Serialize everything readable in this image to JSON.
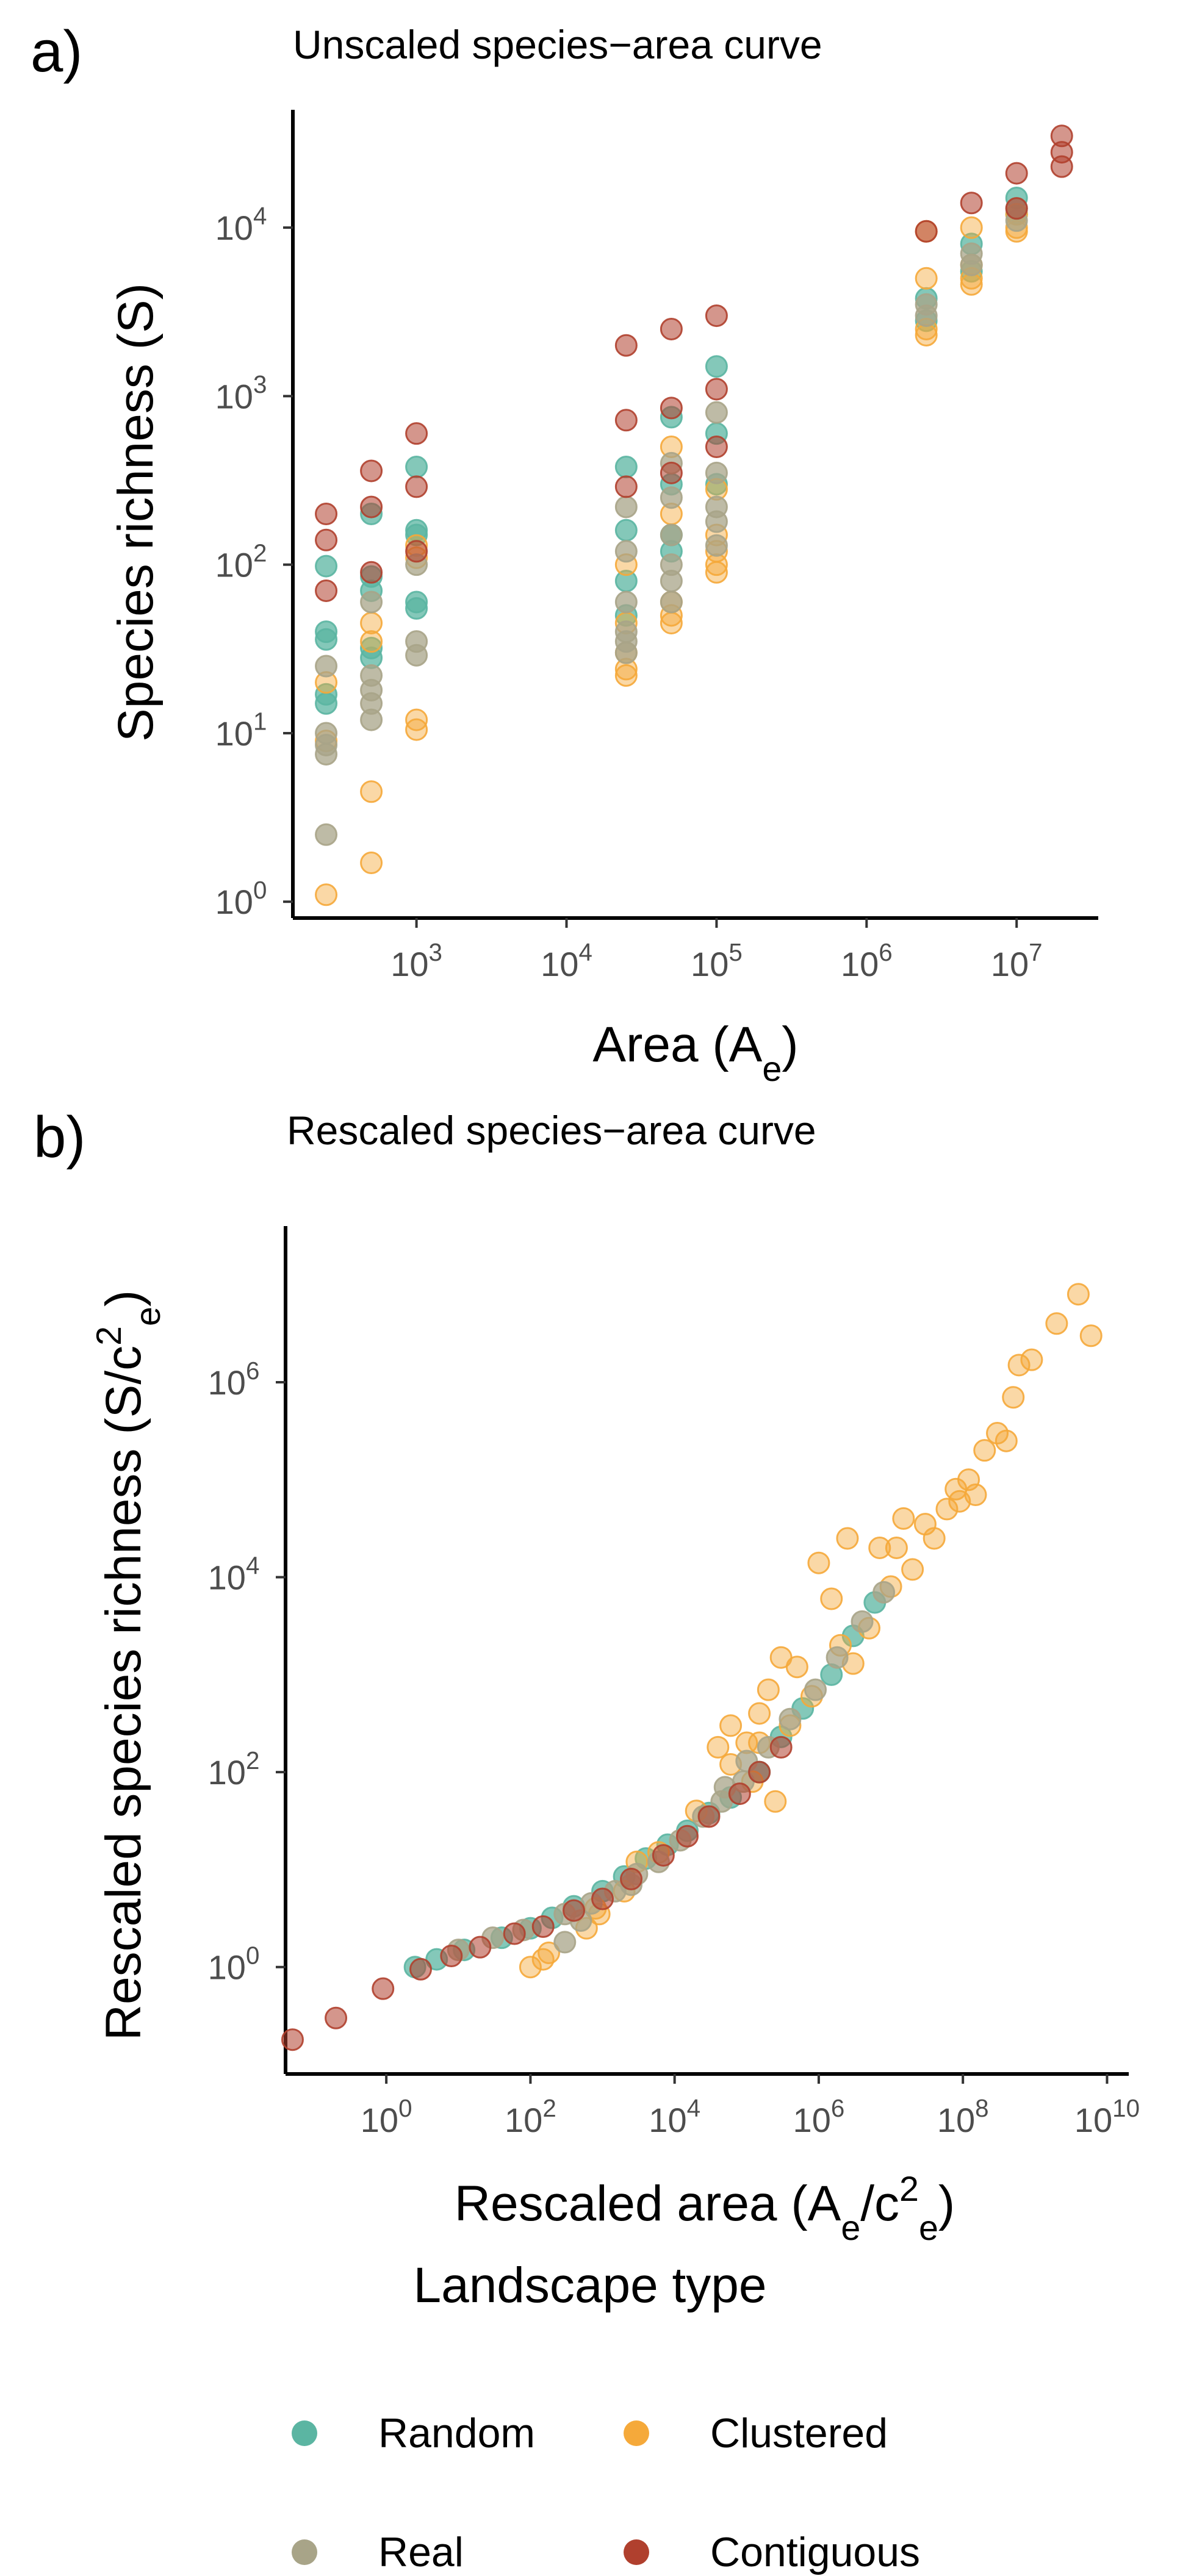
{
  "panel_a": {
    "letter": "a)"
  },
  "panel_b": {
    "letter": "b)"
  },
  "legend": {
    "title": "Landscape type",
    "items": [
      {
        "label": "Random",
        "color": "#5bb5a2"
      },
      {
        "label": "Clustered",
        "color": "#f5a93a"
      },
      {
        "label": "Real",
        "color": "#a8a488"
      },
      {
        "label": "Contiguous",
        "color": "#b0402e"
      }
    ]
  },
  "chart_data": [
    {
      "type": "scatter",
      "title": "Unscaled species−area curve",
      "xlabel": "Area (A_e)",
      "ylabel": "Species richness (S)",
      "x_scale": "log10",
      "y_scale": "log10",
      "xlim": [
        150,
        35000000
      ],
      "ylim": [
        0.8,
        50000
      ],
      "x_ticks": [
        1000,
        10000,
        100000,
        1000000,
        10000000
      ],
      "y_ticks": [
        1,
        10,
        100,
        1000,
        10000
      ],
      "grid": false,
      "legend_placement": "bottom",
      "series": [
        {
          "name": "Random",
          "points": [
            [
              250,
              98
            ],
            [
              250,
              40
            ],
            [
              250,
              36
            ],
            [
              250,
              17
            ],
            [
              250,
              15
            ],
            [
              500,
              200
            ],
            [
              500,
              85
            ],
            [
              500,
              70
            ],
            [
              500,
              32
            ],
            [
              500,
              28
            ],
            [
              1000,
              380
            ],
            [
              1000,
              160
            ],
            [
              1000,
              150
            ],
            [
              1000,
              60
            ],
            [
              1000,
              55
            ],
            [
              25000,
              380
            ],
            [
              25000,
              160
            ],
            [
              25000,
              80
            ],
            [
              25000,
              50
            ],
            [
              50000,
              750
            ],
            [
              50000,
              300
            ],
            [
              50000,
              150
            ],
            [
              50000,
              120
            ],
            [
              100000,
              1500
            ],
            [
              100000,
              600
            ],
            [
              100000,
              300
            ],
            [
              2500000,
              3800
            ],
            [
              2500000,
              2800
            ],
            [
              5000000,
              8000
            ],
            [
              5000000,
              5500
            ],
            [
              10000000,
              15000
            ],
            [
              10000000,
              12000
            ]
          ]
        },
        {
          "name": "Clustered",
          "points": [
            [
              250,
              1.1
            ],
            [
              250,
              9
            ],
            [
              250,
              20
            ],
            [
              500,
              1.7
            ],
            [
              500,
              4.5
            ],
            [
              500,
              35
            ],
            [
              500,
              45
            ],
            [
              1000,
              10.5
            ],
            [
              1000,
              12
            ],
            [
              1000,
              110
            ],
            [
              1000,
              130
            ],
            [
              25000,
              22
            ],
            [
              25000,
              24
            ],
            [
              25000,
              30
            ],
            [
              25000,
              45
            ],
            [
              25000,
              100
            ],
            [
              50000,
              45
            ],
            [
              50000,
              50
            ],
            [
              50000,
              60
            ],
            [
              50000,
              200
            ],
            [
              50000,
              500
            ],
            [
              100000,
              90
            ],
            [
              100000,
              100
            ],
            [
              100000,
              120
            ],
            [
              100000,
              150
            ],
            [
              100000,
              280
            ],
            [
              2500000,
              2300
            ],
            [
              2500000,
              2500
            ],
            [
              2500000,
              5000
            ],
            [
              2500000,
              9500
            ],
            [
              5000000,
              4600
            ],
            [
              5000000,
              5000
            ],
            [
              5000000,
              6000
            ],
            [
              5000000,
              10000
            ],
            [
              10000000,
              9500
            ],
            [
              10000000,
              10000
            ],
            [
              10000000,
              12000
            ]
          ]
        },
        {
          "name": "Real",
          "points": [
            [
              250,
              2.5
            ],
            [
              250,
              7.5
            ],
            [
              250,
              8.5
            ],
            [
              250,
              10
            ],
            [
              250,
              25
            ],
            [
              500,
              12
            ],
            [
              500,
              15
            ],
            [
              500,
              18
            ],
            [
              500,
              22
            ],
            [
              500,
              60
            ],
            [
              1000,
              29
            ],
            [
              1000,
              35
            ],
            [
              1000,
              100
            ],
            [
              25000,
              30
            ],
            [
              25000,
              35
            ],
            [
              25000,
              40
            ],
            [
              25000,
              60
            ],
            [
              25000,
              120
            ],
            [
              25000,
              220
            ],
            [
              50000,
              60
            ],
            [
              50000,
              80
            ],
            [
              50000,
              100
            ],
            [
              50000,
              150
            ],
            [
              50000,
              250
            ],
            [
              50000,
              400
            ],
            [
              100000,
              130
            ],
            [
              100000,
              180
            ],
            [
              100000,
              220
            ],
            [
              100000,
              350
            ],
            [
              100000,
              800
            ],
            [
              2500000,
              3000
            ],
            [
              2500000,
              3500
            ],
            [
              5000000,
              6000
            ],
            [
              5000000,
              7000
            ],
            [
              10000000,
              11000
            ],
            [
              10000000,
              13000
            ]
          ]
        },
        {
          "name": "Contiguous",
          "points": [
            [
              250,
              200
            ],
            [
              250,
              140
            ],
            [
              250,
              70
            ],
            [
              500,
              360
            ],
            [
              500,
              220
            ],
            [
              500,
              90
            ],
            [
              1000,
              600
            ],
            [
              1000,
              290
            ],
            [
              1000,
              120
            ],
            [
              25000,
              2000
            ],
            [
              25000,
              720
            ],
            [
              25000,
              290
            ],
            [
              50000,
              2500
            ],
            [
              50000,
              850
            ],
            [
              50000,
              350
            ],
            [
              100000,
              3000
            ],
            [
              100000,
              1100
            ],
            [
              100000,
              500
            ],
            [
              2500000,
              9500
            ],
            [
              5000000,
              14000
            ],
            [
              10000000,
              21000
            ],
            [
              10000000,
              13000
            ],
            [
              20000000,
              35000
            ],
            [
              20000000,
              28000
            ],
            [
              20000000,
              23000
            ]
          ]
        }
      ]
    },
    {
      "type": "scatter",
      "title": "Rescaled species−area curve",
      "xlabel": "Rescaled area (A_e/c_e^2)",
      "ylabel": "Rescaled species richness (S/c_e^2)",
      "x_scale": "log10",
      "y_scale": "log10",
      "xlim": [
        0.04,
        20000000000
      ],
      "ylim": [
        0.08,
        40000000
      ],
      "x_ticks": [
        1,
        100,
        10000,
        1000000,
        100000000,
        10000000000
      ],
      "y_ticks": [
        1,
        100,
        10000,
        1000000
      ],
      "grid": false,
      "legend_placement": "bottom",
      "series": [
        {
          "name": "Random",
          "points": [
            [
              2.5,
              1.0
            ],
            [
              5,
              1.2
            ],
            [
              12,
              1.5
            ],
            [
              40,
              2.0
            ],
            [
              100,
              2.5
            ],
            [
              200,
              3.2
            ],
            [
              400,
              4.2
            ],
            [
              1000,
              6.0
            ],
            [
              2000,
              8.5
            ],
            [
              4000,
              13
            ],
            [
              8000,
              18
            ],
            [
              15000,
              25
            ],
            [
              30000,
              38
            ],
            [
              60000,
              55
            ],
            [
              150000,
              100
            ],
            [
              300000,
              230
            ],
            [
              600000,
              450
            ],
            [
              1500000,
              1000
            ],
            [
              3000000,
              2500
            ],
            [
              6000000,
              5500
            ]
          ]
        },
        {
          "name": "Clustered",
          "points": [
            [
              100,
              1.0
            ],
            [
              150,
              1.2
            ],
            [
              180,
              1.4
            ],
            [
              600,
              2.5
            ],
            [
              800,
              4
            ],
            [
              2000,
              6
            ],
            [
              6000,
              15
            ],
            [
              20000,
              40
            ],
            [
              60000,
              120
            ],
            [
              100000,
              200
            ],
            [
              150000,
              200
            ],
            [
              200000,
              700
            ],
            [
              400000,
              300
            ],
            [
              800000,
              600
            ],
            [
              2000000,
              2000
            ],
            [
              3000000,
              1300
            ],
            [
              5000000,
              3000
            ],
            [
              10000000,
              8000
            ],
            [
              12000000,
              20000
            ],
            [
              20000000,
              12000
            ],
            [
              30000000,
              35000
            ],
            [
              60000000,
              50000
            ],
            [
              90000000,
              60000
            ],
            [
              120000000,
              100000
            ],
            [
              150000000,
              70000
            ],
            [
              200000000,
              200000
            ],
            [
              300000000,
              300000
            ],
            [
              400000000,
              250000
            ],
            [
              500000000,
              700000
            ],
            [
              600000000,
              1500000
            ],
            [
              900000000,
              1700000
            ],
            [
              2000000000,
              4000000
            ],
            [
              4000000000,
              8000000
            ],
            [
              6000000000,
              3000000
            ],
            [
              1000000,
              14000
            ],
            [
              1500000,
              6000
            ],
            [
              2500000,
              25000
            ],
            [
              7000000,
              20000
            ],
            [
              15000000,
              40000
            ],
            [
              40000000,
              25000
            ],
            [
              80000000,
              80000
            ],
            [
              300000,
              1500
            ],
            [
              500000,
              1200
            ],
            [
              150000,
              400
            ],
            [
              60000,
              300
            ],
            [
              40000,
              180
            ],
            [
              250000,
              50
            ],
            [
              120000,
              80
            ],
            [
              3000,
              12
            ],
            [
              900,
              3.5
            ]
          ]
        },
        {
          "name": "Real",
          "points": [
            [
              10,
              1.5
            ],
            [
              30,
              2
            ],
            [
              80,
              2.4
            ],
            [
              300,
              3.5
            ],
            [
              300,
              1.8
            ],
            [
              1500,
              6
            ],
            [
              3000,
              9
            ],
            [
              6000,
              12
            ],
            [
              12000,
              20
            ],
            [
              25000,
              35
            ],
            [
              45000,
              50
            ],
            [
              90000,
              80
            ],
            [
              200000,
              180
            ],
            [
              400000,
              350
            ],
            [
              900000,
              700
            ],
            [
              1800000,
              1500
            ],
            [
              4000000,
              3500
            ],
            [
              8000000,
              7000
            ],
            [
              500,
              3
            ],
            [
              700,
              4.5
            ],
            [
              2500,
              7
            ],
            [
              50000,
              70
            ],
            [
              100000,
              130
            ]
          ]
        },
        {
          "name": "Contiguous",
          "points": [
            [
              0.05,
              0.18
            ],
            [
              0.2,
              0.3
            ],
            [
              0.9,
              0.6
            ],
            [
              3,
              0.95
            ],
            [
              8,
              1.3
            ],
            [
              20,
              1.6
            ],
            [
              60,
              2.2
            ],
            [
              150,
              2.6
            ],
            [
              400,
              3.8
            ],
            [
              1000,
              5
            ],
            [
              2500,
              8
            ],
            [
              7000,
              14
            ],
            [
              15000,
              22
            ],
            [
              30000,
              35
            ],
            [
              80000,
              60
            ],
            [
              150000,
              100
            ],
            [
              300000,
              180
            ]
          ]
        }
      ]
    }
  ]
}
